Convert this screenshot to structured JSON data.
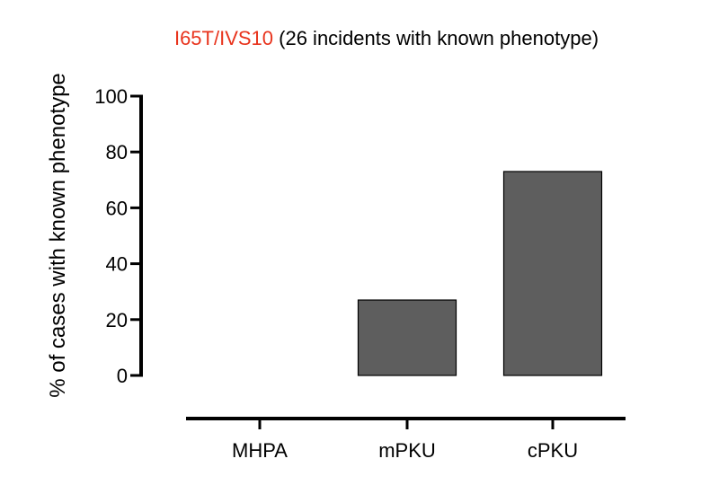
{
  "chart_data": {
    "type": "bar",
    "title": {
      "highlight": "I65T/IVS10",
      "rest": " (26 incidents with known phenotype)",
      "highlight_color": "#e8331c"
    },
    "ylabel": "% of cases with known phenotype",
    "xlabel": "",
    "categories": [
      "MHPA",
      "mPKU",
      "cPKU"
    ],
    "values": [
      0,
      27,
      73
    ],
    "ylim": [
      0,
      100
    ],
    "yticks": [
      0,
      20,
      40,
      60,
      80,
      100
    ],
    "ytick_labels": [
      "0",
      "20",
      "40",
      "60",
      "80",
      "100"
    ],
    "bar_color": "#5e5e5e",
    "grid": false,
    "legend": "none"
  }
}
